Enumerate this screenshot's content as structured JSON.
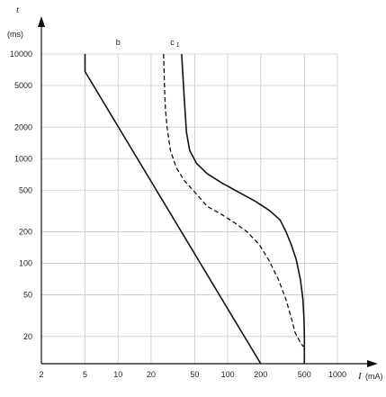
{
  "chart_data": {
    "type": "line",
    "title": "",
    "x_scale": "log",
    "y_scale": "log",
    "xlim": [
      2,
      1000
    ],
    "ylim": [
      11,
      10000
    ],
    "grid": true,
    "x_ticks": [
      {
        "value": 2,
        "label": "2"
      },
      {
        "value": 5,
        "label": "5"
      },
      {
        "value": 10,
        "label": "10"
      },
      {
        "value": 20,
        "label": "20"
      },
      {
        "value": 50,
        "label": "50"
      },
      {
        "value": 100,
        "label": "100"
      },
      {
        "value": 200,
        "label": "200"
      },
      {
        "value": 500,
        "label": "500"
      },
      {
        "value": 1000,
        "label": "1000"
      }
    ],
    "y_ticks": [
      {
        "value": 20,
        "label": "20"
      },
      {
        "value": 50,
        "label": "50"
      },
      {
        "value": 100,
        "label": "100"
      },
      {
        "value": 200,
        "label": "200"
      },
      {
        "value": 500,
        "label": "500"
      },
      {
        "value": 1000,
        "label": "1000"
      },
      {
        "value": 2000,
        "label": "2000"
      },
      {
        "value": 5000,
        "label": "5000"
      },
      {
        "value": 10000,
        "label": "10000"
      }
    ],
    "xlabel": {
      "symbol": "I",
      "unit": "(mA)"
    },
    "ylabel": {
      "symbol": "t",
      "unit": "(ms)"
    },
    "series": [
      {
        "name": "b",
        "style": "solid",
        "points": [
          [
            5,
            10000
          ],
          [
            5,
            6800
          ],
          [
            200,
            11
          ]
        ]
      },
      {
        "name": "c₁",
        "style": "solid",
        "points": [
          [
            38,
            10000
          ],
          [
            40,
            4000
          ],
          [
            42,
            1800
          ],
          [
            45,
            1200
          ],
          [
            52,
            900
          ],
          [
            65,
            720
          ],
          [
            90,
            580
          ],
          [
            130,
            470
          ],
          [
            180,
            390
          ],
          [
            240,
            320
          ],
          [
            300,
            260
          ],
          [
            340,
            200
          ],
          [
            380,
            150
          ],
          [
            420,
            110
          ],
          [
            460,
            70
          ],
          [
            485,
            45
          ],
          [
            495,
            30
          ],
          [
            500,
            20
          ],
          [
            500,
            11
          ]
        ]
      },
      {
        "name": "",
        "style": "dashed",
        "points": [
          [
            26,
            10000
          ],
          [
            26.5,
            5000
          ],
          [
            27,
            3000
          ],
          [
            28,
            2000
          ],
          [
            30,
            1200
          ],
          [
            34,
            820
          ],
          [
            40,
            620
          ],
          [
            50,
            480
          ],
          [
            65,
            350
          ],
          [
            85,
            300
          ],
          [
            115,
            245
          ],
          [
            150,
            200
          ],
          [
            195,
            150
          ],
          [
            240,
            105
          ],
          [
            290,
            70
          ],
          [
            340,
            45
          ],
          [
            380,
            30
          ],
          [
            410,
            22
          ],
          [
            440,
            19
          ],
          [
            470,
            17
          ],
          [
            490,
            16
          ]
        ]
      }
    ],
    "legend": "curve labels at top of curves",
    "curve_labels": [
      {
        "series": "b",
        "text": "b",
        "at": [
          10,
          10000
        ]
      },
      {
        "series": "c₁",
        "text": "c",
        "subscript": "1",
        "at": [
          33,
          10000
        ]
      }
    ]
  }
}
